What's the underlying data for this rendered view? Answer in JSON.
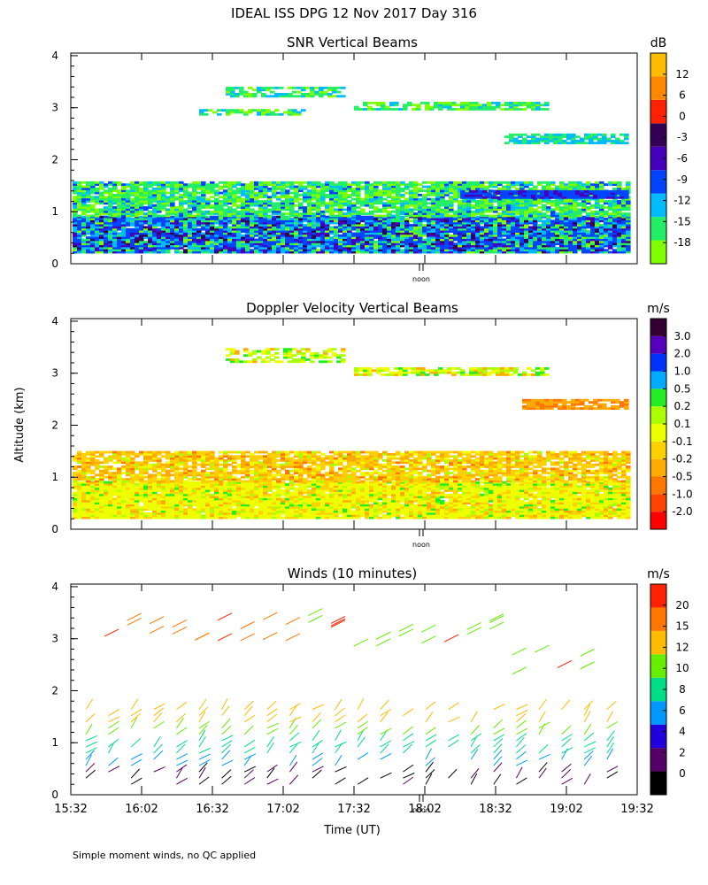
{
  "figure": {
    "title": "IDEAL ISS DPG  12 Nov 2017 Day 316",
    "ylabel": "Altitude (km)",
    "xlabel": "Time (UT)",
    "noon_label": "noon",
    "footnote": "Simple moment winds, no QC applied"
  },
  "chart_data": [
    {
      "type": "heatmap",
      "title": "SNR Vertical Beams",
      "unit": "dB",
      "ylim": [
        0,
        4
      ],
      "yticks": [
        "0",
        "1",
        "2",
        "3",
        "4"
      ],
      "x_range": [
        "15:32",
        "19:32"
      ],
      "colorbar": {
        "labels": [
          "-18",
          "-15",
          "-12",
          "-9",
          "-6",
          "-3",
          "0",
          "6",
          "12"
        ],
        "colors": [
          "#7fff00",
          "#22ee66",
          "#00bbff",
          "#0044ff",
          "#4400bb",
          "#330055",
          "#ff2200",
          "#ff8800",
          "#ffbb00"
        ]
      }
    },
    {
      "type": "heatmap",
      "title": "Doppler Velocity Vertical Beams",
      "unit": "m/s",
      "ylim": [
        0,
        4
      ],
      "yticks": [
        "0",
        "1",
        "2",
        "3",
        "4"
      ],
      "x_range": [
        "15:32",
        "19:32"
      ],
      "colorbar": {
        "labels": [
          "-2.0",
          "-1.0",
          "-0.5",
          "-0.2",
          "-0.1",
          "0.1",
          "0.2",
          "0.5",
          "1.0",
          "2.0",
          "3.0"
        ],
        "colors": [
          "#ff0000",
          "#ff4400",
          "#ff7700",
          "#ffaa00",
          "#ffd000",
          "#eeff00",
          "#aaff00",
          "#22ee22",
          "#00aaff",
          "#0033ff",
          "#5500bb",
          "#330033"
        ]
      }
    },
    {
      "type": "scatter",
      "title": "Winds (10 minutes)",
      "unit": "m/s",
      "ylim": [
        0,
        4
      ],
      "yticks": [
        "0",
        "1",
        "2",
        "3",
        "4"
      ],
      "xticks": [
        "15:32",
        "16:02",
        "16:32",
        "17:02",
        "17:32",
        "18:02",
        "18:32",
        "19:02",
        "19:32"
      ],
      "colorbar": {
        "labels": [
          "0",
          "2",
          "4",
          "6",
          "8",
          "10",
          "12",
          "15",
          "20"
        ],
        "colors": [
          "#000000",
          "#550066",
          "#2200dd",
          "#0099ff",
          "#00dd88",
          "#66ee00",
          "#ffbb00",
          "#ff7700",
          "#ff2200"
        ]
      }
    }
  ]
}
